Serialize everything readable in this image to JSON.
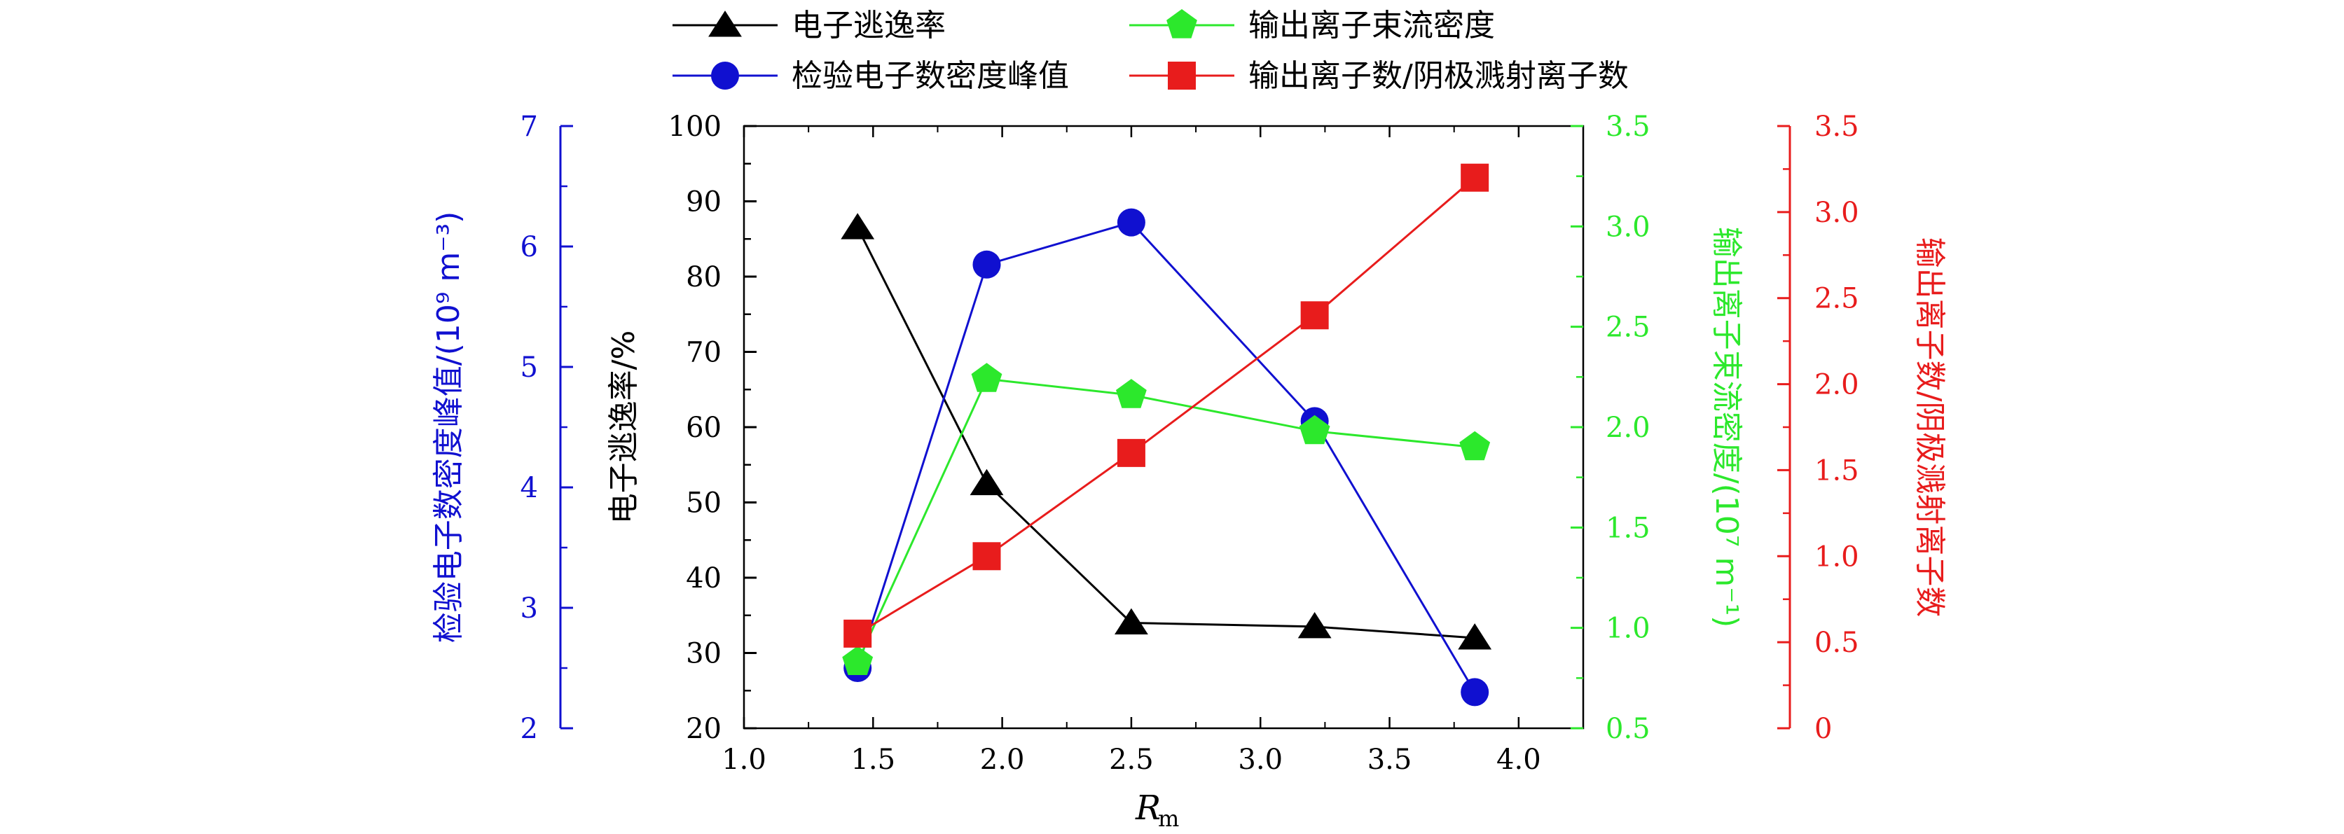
{
  "chart_data": {
    "type": "line",
    "xlabel": "R",
    "xlabel_subscript": "m",
    "x_axis": {
      "min": 1.0,
      "max": 4.25,
      "ticks": [
        "1.0",
        "1.5",
        "2.0",
        "2.5",
        "3.0",
        "3.5",
        "4.0"
      ]
    },
    "axes": {
      "escape": {
        "label": "电子逃逸率/%",
        "color": "#000000",
        "min": 20,
        "max": 100,
        "ticks": [
          "20",
          "30",
          "40",
          "50",
          "60",
          "70",
          "80",
          "90",
          "100"
        ]
      },
      "density": {
        "label": "检验电子数密度峰值/(10⁹ m⁻³)",
        "color": "#1010d0",
        "min": 2,
        "max": 7,
        "ticks": [
          "2",
          "3",
          "4",
          "5",
          "6",
          "7"
        ]
      },
      "flow": {
        "label": "输出离子束流密度/(10⁷ m⁻¹)",
        "color": "#2ce82c",
        "min": 0.5,
        "max": 3.5,
        "ticks": [
          "0.5",
          "1.0",
          "1.5",
          "2.0",
          "2.5",
          "3.0",
          "3.5"
        ]
      },
      "ratio": {
        "label": "输出离子数/阴极溅射离子数",
        "color": "#e81c1c",
        "min": 0,
        "max": 3.5,
        "ticks": [
          "0",
          "0.5",
          "1.0",
          "1.5",
          "2.0",
          "2.5",
          "3.0",
          "3.5"
        ]
      }
    },
    "series": [
      {
        "name": "电子逃逸率",
        "axis": "escape",
        "marker": "triangle",
        "color": "#000000",
        "x": [
          1.44,
          1.94,
          2.5,
          3.21,
          3.83
        ],
        "values": [
          86.5,
          52.5,
          34.0,
          33.5,
          32.0
        ]
      },
      {
        "name": "检验电子数密度峰值",
        "axis": "density",
        "marker": "circle",
        "color": "#1010d0",
        "x": [
          1.44,
          1.94,
          2.5,
          3.21,
          3.83
        ],
        "values": [
          2.5,
          5.85,
          6.2,
          4.55,
          2.3
        ]
      },
      {
        "name": "输出离子束流密度",
        "axis": "flow",
        "marker": "pentagon",
        "color": "#2ce82c",
        "x": [
          1.44,
          1.94,
          2.5,
          3.21,
          3.83
        ],
        "values": [
          0.83,
          2.24,
          2.16,
          1.98,
          1.9
        ]
      },
      {
        "name": "输出离子数/阴极溅射离子数",
        "axis": "ratio",
        "marker": "square",
        "color": "#e81c1c",
        "x": [
          1.44,
          1.94,
          2.5,
          3.21,
          3.83
        ],
        "values": [
          0.55,
          1.0,
          1.6,
          2.4,
          3.2
        ]
      }
    ],
    "legend_placement": "top"
  }
}
